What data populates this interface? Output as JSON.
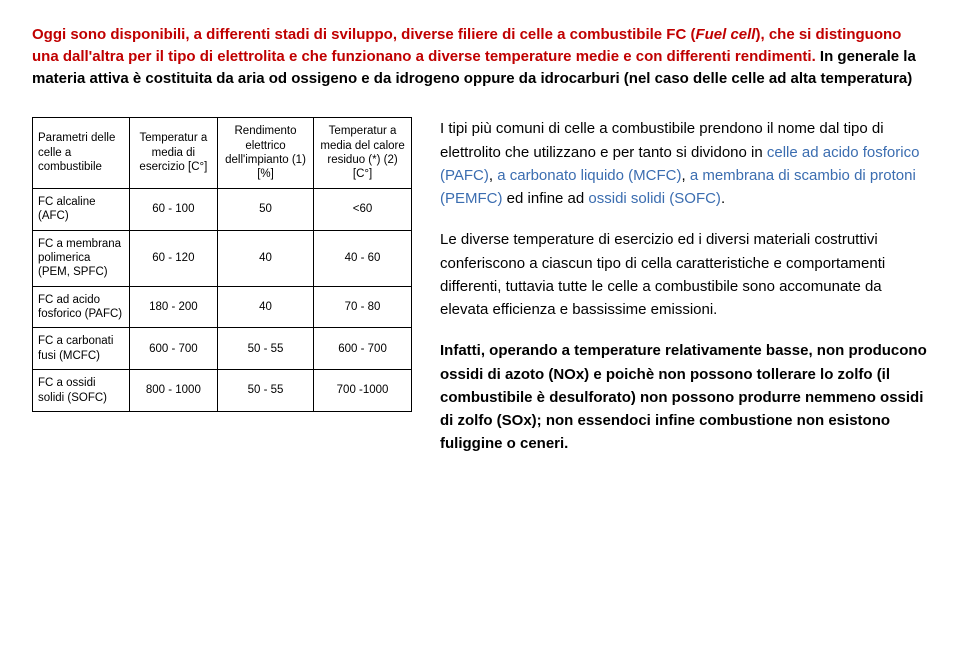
{
  "intro": {
    "part1_red": "Oggi sono disponibili, a differenti stadi di sviluppo, diverse filiere di celle a combustibile FC (",
    "part1_em": "Fuel cell",
    "part1_red2": "), che si distinguono una dall'altra per il tipo di elettrolita e che funzionano a diverse temperature medie e con differenti rendimenti.",
    "part2_black": " In generale la materia attiva è costituita da aria od ossigeno e da idrogeno oppure da idrocarburi (nel caso delle celle ad alta temperatura)"
  },
  "table": {
    "headers": [
      "Parametri delle celle a combustibile",
      "Temperatur a media di esercizio [C°]",
      "Rendimento elettrico dell'impianto (1) [%]",
      "Temperatur a media del calore residuo (*) (2) [C°]"
    ],
    "rows": [
      [
        "FC alcaline (AFC)",
        "60 - 100",
        "50",
        "<60"
      ],
      [
        "FC a membrana polimerica (PEM, SPFC)",
        "60 - 120",
        "40",
        "40 - 60"
      ],
      [
        "FC ad acido fosforico (PAFC)",
        "180 - 200",
        "40",
        "70 - 80"
      ],
      [
        "FC a carbonati fusi (MCFC)",
        "600 - 700",
        "50 - 55",
        "600 - 700"
      ],
      [
        "FC a ossidi solidi (SOFC)",
        "800 - 1000",
        "50 - 55",
        "700 -1000"
      ]
    ]
  },
  "right": {
    "p1_a": "I tipi più comuni di celle a combustibile prendono il nome dal tipo di elettrolito che utilizzano e per tanto si dividono in ",
    "p1_link1": "celle ad acido fosforico (PAFC)",
    "p1_b": ", ",
    "p1_link2": "a carbonato liquido (MCFC)",
    "p1_c": ", ",
    "p1_link3": "a membrana di scambio di protoni (PEMFC)",
    "p1_d": " ed infine ad ",
    "p1_link4": "ossidi solidi (SOFC)",
    "p1_e": ".",
    "p2": "Le diverse temperature di esercizio ed i diversi materiali costruttivi conferiscono a ciascun tipo di cella caratteristiche e comportamenti differenti, tuttavia tutte le celle a combustibile sono accomunate da elevata efficienza e bassissime emissioni.",
    "p3": "Infatti, operando a temperature relativamente basse, non producono ossidi di azoto (NOx) e poichè non possono tollerare lo zolfo (il combustibile è desulforato) non possono produrre nemmeno ossidi di zolfo (SOx); non essendoci infine combustione non esistono fuliggine o ceneri."
  }
}
